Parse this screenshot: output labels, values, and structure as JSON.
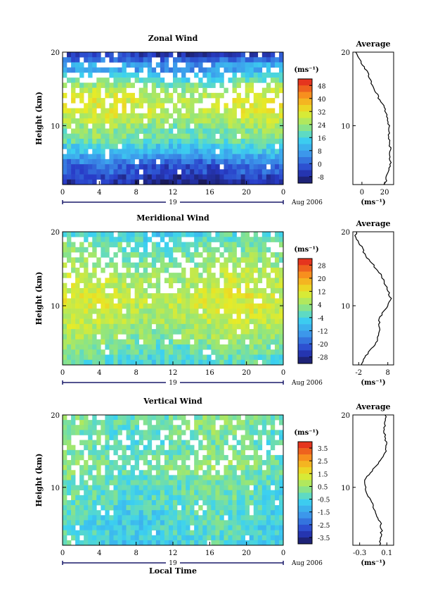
{
  "chart_data": [
    {
      "type": "heatmap",
      "title": "Zonal Wind",
      "ylabel": "Height (km)",
      "xlabel": "",
      "xlim": [
        0,
        24
      ],
      "ylim": [
        2,
        20
      ],
      "x_ticks": [
        "0",
        "4",
        "8",
        "12",
        "16",
        "20",
        "0"
      ],
      "y_ticks": [
        "10",
        "20"
      ],
      "day_label": "19",
      "month_label": "Aug 2006",
      "colorbar": {
        "unit": "(ms⁻¹)",
        "ticks": [
          "48",
          "40",
          "32",
          "24",
          "16",
          "8",
          "0",
          "-8"
        ],
        "range": [
          -8,
          52
        ]
      },
      "field_profile": [
        -4,
        -2,
        2,
        6,
        10,
        14,
        17,
        20,
        23,
        25,
        27,
        29,
        30,
        30,
        29,
        27,
        24,
        20,
        15,
        10,
        4,
        -2
      ],
      "average": {
        "title": "Average",
        "xlabel": "(ms⁻¹)",
        "x_ticks": [
          "0",
          "20"
        ],
        "xlim": [
          -8,
          28
        ],
        "heights": [
          2,
          3,
          4,
          5,
          6,
          7,
          8,
          9,
          10,
          11,
          12,
          13,
          14,
          15,
          16,
          17,
          18,
          19,
          20
        ],
        "values": [
          20,
          22,
          24,
          25,
          25,
          25,
          24,
          24,
          24,
          23,
          21,
          18,
          14,
          11,
          8,
          6,
          2,
          -2,
          -6
        ]
      }
    },
    {
      "type": "heatmap",
      "title": "Meridional Wind",
      "ylabel": "Height (km)",
      "xlabel": "",
      "xlim": [
        0,
        24
      ],
      "ylim": [
        2,
        20
      ],
      "x_ticks": [
        "0",
        "4",
        "8",
        "12",
        "16",
        "20",
        "0"
      ],
      "y_ticks": [
        "10",
        "20"
      ],
      "day_label": "19",
      "month_label": "Aug 2006",
      "colorbar": {
        "unit": "(ms⁻¹)",
        "ticks": [
          "28",
          "20",
          "12",
          "4",
          "-4",
          "-12",
          "-20",
          "-28"
        ],
        "range": [
          -30,
          30
        ]
      },
      "field_profile": [
        -3,
        -2,
        0,
        2,
        3,
        4,
        5,
        6,
        7,
        8,
        8,
        8,
        7,
        6,
        5,
        4,
        3,
        2,
        1,
        0,
        -2,
        -4
      ],
      "average": {
        "title": "Average",
        "xlabel": "(ms⁻¹)",
        "x_ticks": [
          "-2",
          "8"
        ],
        "xlim": [
          -4,
          10
        ],
        "heights": [
          2,
          3,
          4,
          5,
          6,
          7,
          8,
          9,
          10,
          11,
          12,
          13,
          14,
          15,
          16,
          17,
          18,
          19,
          20
        ],
        "values": [
          -1,
          0,
          2,
          4,
          5,
          5,
          5,
          6,
          8,
          9,
          8,
          7,
          6,
          4,
          2,
          0,
          -1,
          -3,
          -3
        ]
      }
    },
    {
      "type": "heatmap",
      "title": "Vertical Wind",
      "ylabel": "Height (km)",
      "xlabel": "Local Time",
      "xlim": [
        0,
        24
      ],
      "ylim": [
        2,
        20
      ],
      "x_ticks": [
        "0",
        "4",
        "8",
        "12",
        "16",
        "20",
        "0"
      ],
      "y_ticks": [
        "10",
        "20"
      ],
      "day_label": "19",
      "month_label": "Aug 2006",
      "colorbar": {
        "unit": "(ms⁻¹)",
        "ticks": [
          "3.5",
          "2.5",
          "1.5",
          "0.5",
          "-0.5",
          "-1.5",
          "-2.5",
          "-3.5"
        ],
        "range": [
          -4,
          4
        ]
      },
      "field_profile": [
        -0.6,
        -0.6,
        -0.5,
        -0.5,
        -0.4,
        -0.4,
        -0.3,
        -0.3,
        -0.2,
        -0.2,
        -0.1,
        0,
        0.1,
        0.2,
        0.1,
        0,
        -0.1,
        -0.1,
        0,
        0,
        0.1,
        0
      ],
      "average": {
        "title": "Average",
        "xlabel": "(ms⁻¹)",
        "x_ticks": [
          "-0.3",
          "0.1"
        ],
        "xlim": [
          -0.4,
          0.2
        ],
        "heights": [
          2,
          3,
          4,
          5,
          6,
          7,
          8,
          9,
          10,
          11,
          12,
          13,
          14,
          15,
          16,
          17,
          18,
          19,
          20
        ],
        "values": [
          0.0,
          0.0,
          0.02,
          0.01,
          -0.05,
          -0.08,
          -0.12,
          -0.18,
          -0.22,
          -0.22,
          -0.15,
          -0.05,
          0.02,
          0.08,
          0.1,
          0.07,
          0.06,
          0.07,
          0.08
        ]
      }
    }
  ]
}
